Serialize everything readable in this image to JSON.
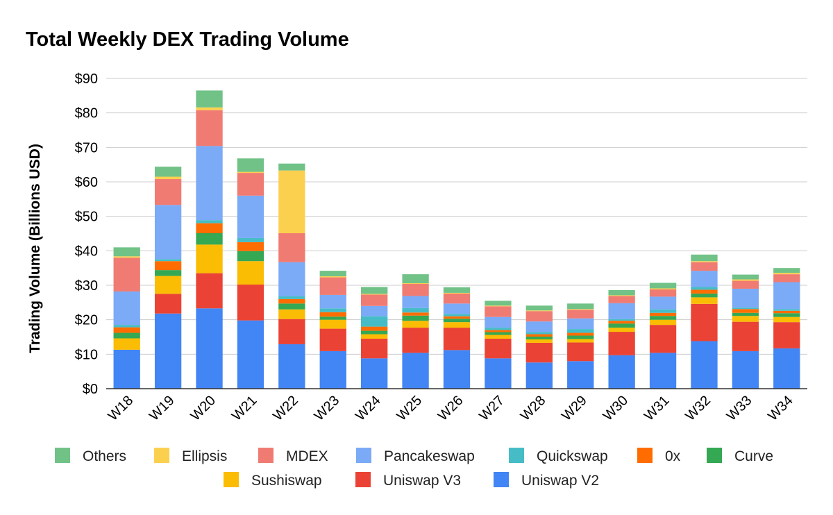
{
  "chart_data": {
    "type": "bar",
    "stacked": true,
    "title": "Total Weekly DEX Trading Volume",
    "ylabel": "Trading Volume (Billions USD)",
    "xlabel": "",
    "ylim": [
      0,
      90
    ],
    "yticks": [
      0,
      10,
      20,
      30,
      40,
      50,
      60,
      70,
      80,
      90
    ],
    "ytick_labels": [
      "$0",
      "$10",
      "$20",
      "$30",
      "$40",
      "$50",
      "$60",
      "$70",
      "$80",
      "$90"
    ],
    "grid": true,
    "legend_position": "bottom",
    "categories": [
      "W18",
      "W19",
      "W20",
      "W21",
      "W22",
      "W23",
      "W24",
      "W25",
      "W26",
      "W27",
      "W28",
      "W29",
      "W30",
      "W31",
      "W32",
      "W33",
      "W34"
    ],
    "series": [
      {
        "name": "Uniswap V2",
        "color": "#4285F4",
        "values": [
          11.3,
          21.8,
          23.3,
          19.8,
          12.9,
          10.9,
          8.8,
          10.4,
          11.2,
          8.8,
          7.6,
          8.0,
          9.7,
          10.4,
          13.8,
          10.9,
          11.7
        ]
      },
      {
        "name": "Uniswap V3",
        "color": "#EA4335",
        "values": [
          0.0,
          5.7,
          10.2,
          10.4,
          7.3,
          6.5,
          5.7,
          7.3,
          6.5,
          5.7,
          5.7,
          5.4,
          6.8,
          8.1,
          10.8,
          8.5,
          7.6
        ]
      },
      {
        "name": "Sushiswap",
        "color": "#FBBC04",
        "values": [
          3.3,
          5.2,
          8.3,
          6.8,
          2.8,
          2.6,
          1.3,
          2.0,
          1.6,
          1.1,
          1.0,
          1.0,
          1.2,
          1.5,
          1.9,
          1.7,
          1.5
        ]
      },
      {
        "name": "Curve",
        "color": "#34A853",
        "values": [
          1.6,
          1.7,
          3.3,
          2.9,
          1.7,
          0.9,
          1.0,
          1.5,
          1.0,
          0.8,
          0.8,
          1.0,
          1.2,
          1.1,
          1.1,
          0.9,
          1.1
        ]
      },
      {
        "name": "0x",
        "color": "#FF6D01",
        "values": [
          1.6,
          2.6,
          2.9,
          2.6,
          1.3,
          1.3,
          1.2,
          0.9,
          0.7,
          0.6,
          0.7,
          0.8,
          0.8,
          0.9,
          1.1,
          1.1,
          0.7
        ]
      },
      {
        "name": "Quickswap",
        "color": "#46BDC6",
        "values": [
          0.7,
          0.6,
          0.9,
          1.2,
          0.8,
          1.1,
          3.0,
          1.3,
          0.7,
          0.7,
          0.6,
          1.1,
          0.5,
          1.0,
          0.8,
          0.4,
          0.5
        ]
      },
      {
        "name": "Pancakeswap",
        "color": "#7BAAF7",
        "values": [
          9.7,
          15.7,
          21.5,
          12.3,
          9.9,
          3.9,
          3.0,
          3.5,
          3.0,
          3.1,
          3.1,
          3.1,
          4.6,
          3.7,
          4.7,
          5.5,
          7.8
        ]
      },
      {
        "name": "MDEX",
        "color": "#F07B72",
        "values": [
          9.8,
          7.5,
          10.4,
          6.6,
          8.4,
          5.1,
          3.3,
          3.5,
          2.9,
          3.1,
          3.0,
          2.5,
          2.1,
          2.1,
          2.5,
          2.3,
          2.3
        ]
      },
      {
        "name": "Ellipsis",
        "color": "#FCD04F",
        "values": [
          0.4,
          0.7,
          0.8,
          0.3,
          18.2,
          0.3,
          0.2,
          0.2,
          0.2,
          0.2,
          0.2,
          0.2,
          0.2,
          0.3,
          0.3,
          0.4,
          0.4
        ]
      },
      {
        "name": "Others",
        "color": "#71C287",
        "values": [
          2.6,
          2.9,
          4.9,
          3.9,
          2.0,
          1.6,
          2.0,
          2.6,
          1.6,
          1.4,
          1.4,
          1.6,
          1.5,
          1.6,
          1.9,
          1.4,
          1.4
        ]
      }
    ],
    "legend_order": [
      "Others",
      "Ellipsis",
      "MDEX",
      "Pancakeswap",
      "Quickswap",
      "0x",
      "Curve",
      "Sushiswap",
      "Uniswap V3",
      "Uniswap V2"
    ]
  }
}
